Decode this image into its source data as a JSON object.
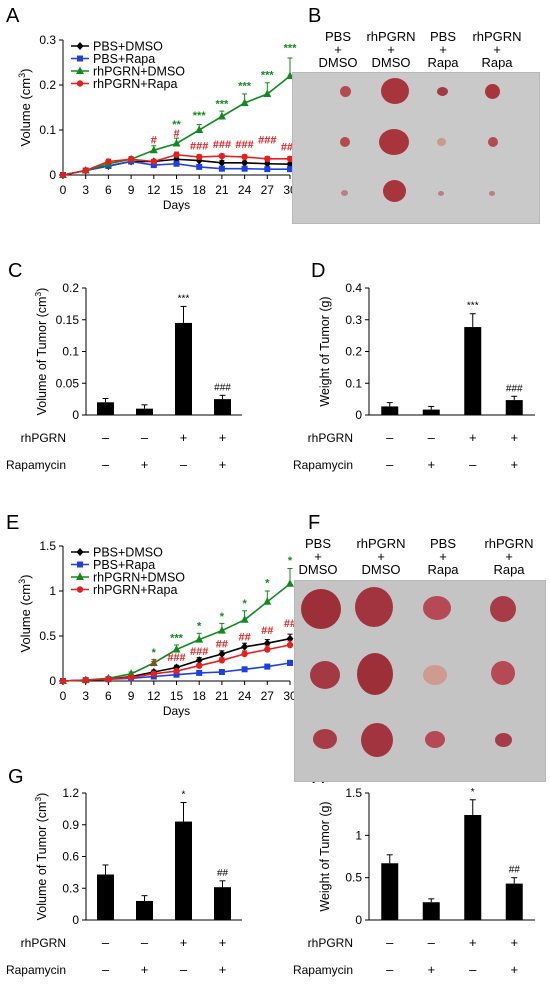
{
  "panels": {
    "A": {
      "letter": "A",
      "chart_data": {
        "type": "line",
        "xlabel": "Days",
        "ylabel": "Volume (cm³)",
        "x": [
          0,
          3,
          6,
          9,
          12,
          15,
          18,
          21,
          24,
          27,
          30
        ],
        "xlim": [
          0,
          30
        ],
        "ylim": [
          0,
          0.3
        ],
        "yticks": [
          "0",
          "0.1",
          "0.2",
          "0.3"
        ],
        "legend": "top-left",
        "series": [
          {
            "name": "PBS+DMSO",
            "color": "#000000",
            "marker": "diamond",
            "values": [
              0,
              0.01,
              0.02,
              0.03,
              0.03,
              0.035,
              0.032,
              0.027,
              0.027,
              0.025,
              0.024
            ],
            "err": [
              0,
              0.003,
              0.004,
              0.005,
              0.004,
              0.005,
              0.006,
              0.005,
              0.004,
              0.004,
              0.004
            ]
          },
          {
            "name": "PBS+Rapa",
            "color": "#1f3fe6",
            "marker": "square",
            "values": [
              0,
              0.01,
              0.02,
              0.03,
              0.022,
              0.025,
              0.018,
              0.014,
              0.014,
              0.013,
              0.013
            ],
            "err": [
              0,
              0.003,
              0.004,
              0.004,
              0.004,
              0.005,
              0.004,
              0.003,
              0.003,
              0.003,
              0.003
            ]
          },
          {
            "name": "rhPGRN+DMSO",
            "color": "#128a1e",
            "marker": "triangle",
            "values": [
              0,
              0.01,
              0.025,
              0.035,
              0.055,
              0.07,
              0.1,
              0.13,
              0.16,
              0.18,
              0.22
            ],
            "err": [
              0,
              0.003,
              0.005,
              0.006,
              0.01,
              0.012,
              0.012,
              0.012,
              0.02,
              0.025,
              0.04
            ]
          },
          {
            "name": "rhPGRN+Rapa",
            "color": "#e81e1e",
            "marker": "circle",
            "values": [
              0,
              0.01,
              0.03,
              0.035,
              0.03,
              0.045,
              0.04,
              0.042,
              0.04,
              0.036,
              0.036
            ],
            "err": [
              0,
              0.003,
              0.005,
              0.005,
              0.005,
              0.006,
              0.005,
              0.005,
              0.005,
              0.005,
              0.005
            ]
          }
        ],
        "annotations": [
          {
            "text": "#",
            "x": 12,
            "y": 0.07,
            "color": "#e81e1e"
          },
          {
            "text": "#",
            "x": 15,
            "y": 0.085,
            "color": "#e81e1e"
          },
          {
            "text": "**",
            "x": 15,
            "y": 0.105,
            "color": "#128a1e"
          },
          {
            "text": "***",
            "x": 18,
            "y": 0.125,
            "color": "#128a1e"
          },
          {
            "text": "###",
            "x": 18,
            "y": 0.057,
            "color": "#e81e1e"
          },
          {
            "text": "***",
            "x": 21,
            "y": 0.15,
            "color": "#128a1e"
          },
          {
            "text": "###",
            "x": 21,
            "y": 0.06,
            "color": "#e81e1e"
          },
          {
            "text": "***",
            "x": 24,
            "y": 0.19,
            "color": "#128a1e"
          },
          {
            "text": "###",
            "x": 24,
            "y": 0.06,
            "color": "#e81e1e"
          },
          {
            "text": "***",
            "x": 27,
            "y": 0.215,
            "color": "#128a1e"
          },
          {
            "text": "###",
            "x": 27,
            "y": 0.07,
            "color": "#e81e1e"
          },
          {
            "text": "***",
            "x": 30,
            "y": 0.275,
            "color": "#128a1e"
          },
          {
            "text": "###",
            "x": 30,
            "y": 0.055,
            "color": "#e81e1e"
          }
        ]
      }
    },
    "B": {
      "letter": "B",
      "columns": [
        "PBS\n+\nDMSO",
        "rhPGRN\n+\nDMSO",
        "PBS\n+\nRapa",
        "rhPGRN\n+\nRapa"
      ]
    },
    "C": {
      "letter": "C",
      "chart_data": {
        "type": "bar",
        "ylabel": "Volume of Tumor (cm³)",
        "categories": [
          "PBS+DMSO",
          "PBS+Rapa",
          "rhPGRN+DMSO",
          "rhPGRN+Rapa"
        ],
        "values": [
          0.02,
          0.01,
          0.145,
          0.025
        ],
        "err": [
          0.006,
          0.006,
          0.026,
          0.006
        ],
        "ylim": [
          0,
          0.2
        ],
        "yticks": [
          "0",
          "0.05",
          "0.1",
          "0.15",
          "0.2"
        ],
        "sig": [
          "",
          "",
          "***",
          "###"
        ],
        "treat_rows": [
          {
            "label": "rhPGRN",
            "signs": [
              "–",
              "–",
              "+",
              "+"
            ]
          },
          {
            "label": "Rapamycin",
            "signs": [
              "–",
              "+",
              "–",
              "+"
            ]
          }
        ]
      }
    },
    "D": {
      "letter": "D",
      "chart_data": {
        "type": "bar",
        "ylabel": "Weight of Tumor (g)",
        "categories": [
          "PBS+DMSO",
          "PBS+Rapa",
          "rhPGRN+DMSO",
          "rhPGRN+Rapa"
        ],
        "values": [
          0.027,
          0.017,
          0.277,
          0.047
        ],
        "err": [
          0.012,
          0.01,
          0.042,
          0.012
        ],
        "ylim": [
          0,
          0.4
        ],
        "yticks": [
          "0",
          "0.1",
          "0.2",
          "0.3",
          "0.4"
        ],
        "sig": [
          "",
          "",
          "***",
          "###"
        ],
        "treat_rows": [
          {
            "label": "rhPGRN",
            "signs": [
              "–",
              "–",
              "+",
              "+"
            ]
          },
          {
            "label": "Rapamycin",
            "signs": [
              "–",
              "+",
              "–",
              "+"
            ]
          }
        ]
      }
    },
    "E": {
      "letter": "E",
      "chart_data": {
        "type": "line",
        "xlabel": "Days",
        "ylabel": "Volume (cm³)",
        "x": [
          0,
          3,
          6,
          9,
          12,
          15,
          18,
          21,
          24,
          27,
          30
        ],
        "xlim": [
          0,
          30
        ],
        "ylim": [
          0,
          1.5
        ],
        "yticks": [
          "0",
          "0.5",
          "1",
          "1.5"
        ],
        "legend": "top-left",
        "series": [
          {
            "name": "PBS+DMSO",
            "color": "#000000",
            "marker": "diamond",
            "values": [
              0,
              0.01,
              0.02,
              0.05,
              0.1,
              0.15,
              0.23,
              0.3,
              0.38,
              0.42,
              0.47
            ],
            "err": [
              0,
              0.005,
              0.01,
              0.015,
              0.02,
              0.025,
              0.03,
              0.035,
              0.04,
              0.04,
              0.05
            ]
          },
          {
            "name": "PBS+Rapa",
            "color": "#1f3fe6",
            "marker": "square",
            "values": [
              0,
              0.01,
              0.02,
              0.03,
              0.05,
              0.07,
              0.09,
              0.1,
              0.13,
              0.16,
              0.2
            ],
            "err": [
              0,
              0.005,
              0.008,
              0.01,
              0.012,
              0.015,
              0.015,
              0.018,
              0.02,
              0.025,
              0.03
            ]
          },
          {
            "name": "rhPGRN+DMSO",
            "color": "#128a1e",
            "marker": "triangle",
            "values": [
              0,
              0.01,
              0.03,
              0.08,
              0.2,
              0.35,
              0.46,
              0.56,
              0.68,
              0.88,
              1.08
            ],
            "err": [
              0,
              0.005,
              0.01,
              0.02,
              0.04,
              0.05,
              0.07,
              0.08,
              0.1,
              0.12,
              0.17
            ]
          },
          {
            "name": "rhPGRN+Rapa",
            "color": "#e81e1e",
            "marker": "circle",
            "values": [
              0,
              0.01,
              0.02,
              0.04,
              0.08,
              0.11,
              0.17,
              0.23,
              0.3,
              0.35,
              0.4
            ],
            "err": [
              0,
              0.005,
              0.008,
              0.01,
              0.015,
              0.02,
              0.025,
              0.03,
              0.035,
              0.04,
              0.045
            ]
          }
        ],
        "annotations": [
          {
            "text": "*",
            "x": 12,
            "y": 0.28,
            "color": "#128a1e"
          },
          {
            "text": "#",
            "x": 12,
            "y": 0.16,
            "color": "#e81e1e"
          },
          {
            "text": "***",
            "x": 15,
            "y": 0.44,
            "color": "#128a1e"
          },
          {
            "text": "###",
            "x": 15,
            "y": 0.22,
            "color": "#e81e1e"
          },
          {
            "text": "*",
            "x": 18,
            "y": 0.57,
            "color": "#128a1e"
          },
          {
            "text": "###",
            "x": 18,
            "y": 0.29,
            "color": "#e81e1e"
          },
          {
            "text": "*",
            "x": 21,
            "y": 0.68,
            "color": "#128a1e"
          },
          {
            "text": "##",
            "x": 21,
            "y": 0.37,
            "color": "#e81e1e"
          },
          {
            "text": "*",
            "x": 24,
            "y": 0.82,
            "color": "#128a1e"
          },
          {
            "text": "##",
            "x": 24,
            "y": 0.45,
            "color": "#e81e1e"
          },
          {
            "text": "*",
            "x": 27,
            "y": 1.05,
            "color": "#128a1e"
          },
          {
            "text": "##",
            "x": 27,
            "y": 0.52,
            "color": "#e81e1e"
          },
          {
            "text": "*",
            "x": 30,
            "y": 1.3,
            "color": "#128a1e"
          },
          {
            "text": "##",
            "x": 30,
            "y": 0.6,
            "color": "#e81e1e"
          }
        ]
      }
    },
    "F": {
      "letter": "F",
      "columns": [
        "PBS\n+\nDMSO",
        "rhPGRN\n+\nDMSO",
        "PBS\n+\nRapa",
        "rhPGRN\n+\nRapa"
      ]
    },
    "G": {
      "letter": "G",
      "chart_data": {
        "type": "bar",
        "ylabel": "Volume of Tumor (cm³)",
        "categories": [
          "PBS+DMSO",
          "PBS+Rapa",
          "rhPGRN+DMSO",
          "rhPGRN+Rapa"
        ],
        "values": [
          0.43,
          0.18,
          0.93,
          0.31
        ],
        "err": [
          0.09,
          0.05,
          0.18,
          0.06
        ],
        "ylim": [
          0,
          1.2
        ],
        "yticks": [
          "0",
          "0.3",
          "0.6",
          "0.9",
          "1.2"
        ],
        "sig": [
          "",
          "",
          "*",
          "##"
        ],
        "treat_rows": [
          {
            "label": "rhPGRN",
            "signs": [
              "–",
              "–",
              "+",
              "+"
            ]
          },
          {
            "label": "Rapamycin",
            "signs": [
              "–",
              "+",
              "–",
              "+"
            ]
          }
        ]
      }
    },
    "H": {
      "letter": "H",
      "chart_data": {
        "type": "bar",
        "ylabel": "Weight of Tumor (g)",
        "categories": [
          "PBS+DMSO",
          "PBS+Rapa",
          "rhPGRN+DMSO",
          "rhPGRN+Rapa"
        ],
        "values": [
          0.67,
          0.21,
          1.24,
          0.43
        ],
        "err": [
          0.1,
          0.04,
          0.18,
          0.07
        ],
        "ylim": [
          0,
          1.5
        ],
        "yticks": [
          "0",
          "0.5",
          "1",
          "1.5"
        ],
        "sig": [
          "",
          "",
          "*",
          "##"
        ],
        "treat_rows": [
          {
            "label": "rhPGRN",
            "signs": [
              "–",
              "–",
              "+",
              "+"
            ]
          },
          {
            "label": "Rapamycin",
            "signs": [
              "–",
              "+",
              "–",
              "+"
            ]
          }
        ]
      }
    }
  }
}
